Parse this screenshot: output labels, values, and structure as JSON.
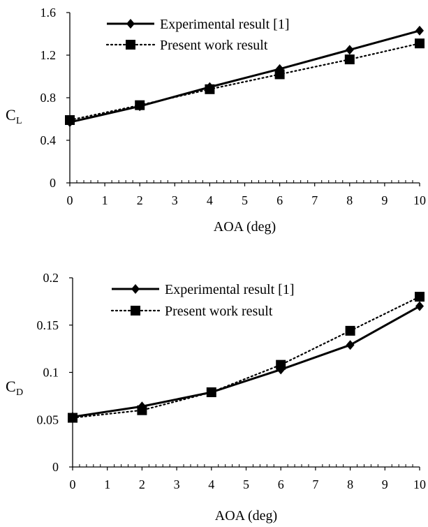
{
  "chart_data": [
    {
      "type": "line",
      "xlabel": "AOA (deg)",
      "ylabel": {
        "main": "C",
        "sub": "L"
      },
      "xlim": [
        0,
        10
      ],
      "ylim": [
        0,
        1.6
      ],
      "xticks": [
        "0",
        "1",
        "2",
        "3",
        "4",
        "5",
        "6",
        "7",
        "8",
        "9",
        "10"
      ],
      "yticks": [
        "0",
        "0.4",
        "0.8",
        "1.2",
        "1.6"
      ],
      "legend_position": "top-left",
      "grid": false,
      "series": [
        {
          "name": "Experimental result [1]",
          "style": "solid",
          "marker": "diamond",
          "x": [
            0,
            2,
            4,
            6,
            8,
            10
          ],
          "y": [
            0.57,
            0.72,
            0.9,
            1.07,
            1.25,
            1.43
          ]
        },
        {
          "name": "Present work result",
          "style": "dotted",
          "marker": "square",
          "x": [
            0,
            2,
            4,
            6,
            8,
            10
          ],
          "y": [
            0.59,
            0.73,
            0.88,
            1.02,
            1.16,
            1.31
          ]
        }
      ]
    },
    {
      "type": "line",
      "xlabel": "AOA (deg)",
      "ylabel": {
        "main": "C",
        "sub": "D"
      },
      "xlim": [
        0,
        10
      ],
      "ylim": [
        0,
        0.2
      ],
      "xticks": [
        "0",
        "1",
        "2",
        "3",
        "4",
        "5",
        "6",
        "7",
        "8",
        "9",
        "10"
      ],
      "yticks": [
        "0",
        "0.05",
        "0.1",
        "0.15",
        "0.2"
      ],
      "legend_position": "top-left",
      "grid": false,
      "series": [
        {
          "name": "Experimental result [1]",
          "style": "solid",
          "marker": "diamond",
          "x": [
            0,
            2,
            4,
            6,
            8,
            10
          ],
          "y": [
            0.053,
            0.064,
            0.079,
            0.103,
            0.129,
            0.17
          ]
        },
        {
          "name": "Present work result",
          "style": "dotted",
          "marker": "square",
          "x": [
            0,
            2,
            4,
            6,
            8,
            10
          ],
          "y": [
            0.052,
            0.06,
            0.079,
            0.108,
            0.144,
            0.18
          ]
        }
      ]
    }
  ]
}
